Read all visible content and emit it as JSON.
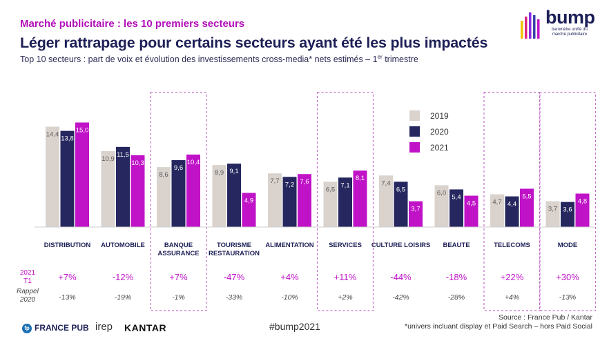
{
  "header": {
    "kicker": "Marché publicitaire : les 10 premiers secteurs",
    "title": "Léger rattrapage pour certains secteurs ayant été les plus impactés",
    "subtitle_main": "Top 10 secteurs : part de voix et évolution des investissements cross-media* nets estimés – 1",
    "subtitle_sup": "er",
    "subtitle_end": " trimestre"
  },
  "logo": {
    "word": "bump",
    "tagline": "baromètre unifié du marché publicitaire"
  },
  "chart_data": {
    "type": "bar",
    "categories": [
      "DISTRIBUTION",
      "AUTOMOBILE",
      "BANQUE ASSURANCE",
      "TOURISME RESTAURATION",
      "ALIMENTATION",
      "SERVICES",
      "CULTURE LOISIRS",
      "BEAUTE",
      "TELECOMS",
      "MODE"
    ],
    "category_lines": [
      [
        "DISTRIBUTION"
      ],
      [
        "AUTOMOBILE"
      ],
      [
        "BANQUE",
        "ASSURANCE"
      ],
      [
        "TOURISME",
        "RESTAURATION"
      ],
      [
        "ALIMENTATION"
      ],
      [
        "SERVICES"
      ],
      [
        "CULTURE LOISIRS"
      ],
      [
        "BEAUTE"
      ],
      [
        "TELECOMS"
      ],
      [
        "MODE"
      ]
    ],
    "series": [
      {
        "name": "2019",
        "color": "#d9d2cd",
        "values": [
          14.4,
          10.9,
          8.6,
          8.9,
          7.7,
          6.5,
          7.4,
          6.0,
          4.7,
          3.7
        ],
        "labels": [
          "14,4",
          "10,9",
          "8,6",
          "8,9",
          "7,7",
          "6,5",
          "7,4",
          "6,0",
          "4,7",
          "3,7"
        ]
      },
      {
        "name": "2020",
        "color": "#25275e",
        "values": [
          13.8,
          11.5,
          9.6,
          9.1,
          7.2,
          7.1,
          6.5,
          5.4,
          4.4,
          3.6
        ],
        "labels": [
          "13,8",
          "11,5",
          "9,6",
          "9,1",
          "7,2",
          "7,1",
          "6,5",
          "5,4",
          "4,4",
          "3,6"
        ]
      },
      {
        "name": "2021",
        "color": "#c013c7",
        "values": [
          15.0,
          10.3,
          10.4,
          4.9,
          7.6,
          8.1,
          3.7,
          4.5,
          5.5,
          4.8
        ],
        "labels": [
          "15,0",
          "10,3",
          "10,4",
          "4,9",
          "7,6",
          "8,1",
          "3,7",
          "4,5",
          "5,5",
          "4,8"
        ]
      }
    ],
    "highlighted_categories": [
      "BANQUE ASSURANCE",
      "SERVICES",
      "TELECOMS",
      "MODE"
    ],
    "legend_position": "top-right",
    "row1": {
      "label_line1": "2021",
      "label_line2": "T1",
      "values": [
        "+7%",
        "-12%",
        "+7%",
        "-47%",
        "+4%",
        "+11%",
        "-44%",
        "-18%",
        "+22%",
        "+30%"
      ]
    },
    "row2": {
      "label_line1": "Rappel",
      "label_line2": "2020",
      "values": [
        "-13%",
        "-19%",
        "-1%",
        "-33%",
        "-10%",
        "+2%",
        "-42%",
        "-28%",
        "+4%",
        "-13%"
      ]
    }
  },
  "footer": {
    "francepub_mark": "fp",
    "francepub": "FRANCE PUB",
    "irep": "irep",
    "kantar": "KANTAR",
    "hashtag": "#bump2021",
    "source_line1": "Source : France Pub / Kantar",
    "source_line2": "*univers incluant display et Paid Search – hors Paid Social"
  },
  "colors": {
    "accent": "#c013c7",
    "navy": "#25275e",
    "beige": "#d9d2cd"
  }
}
